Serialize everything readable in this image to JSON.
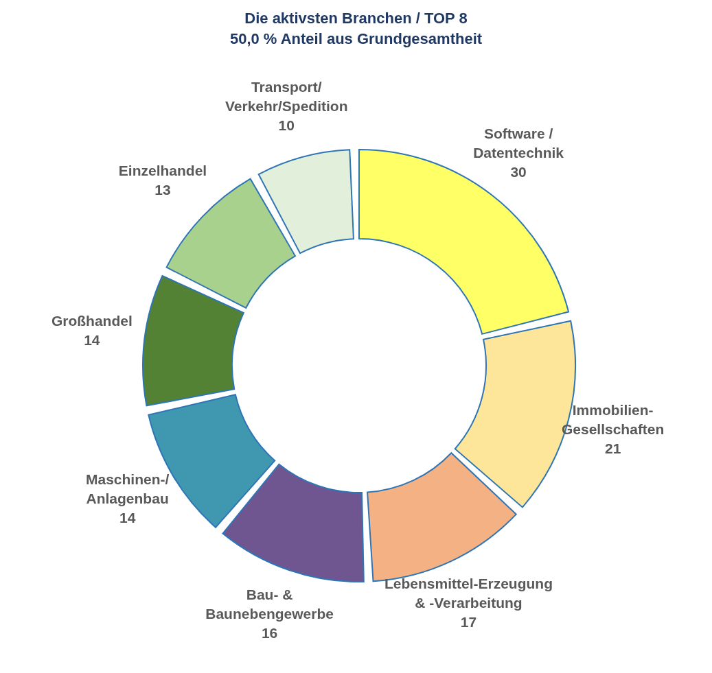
{
  "chart_data": {
    "type": "donut",
    "title": "Die aktivsten Branchen  / TOP 8\n50,0 %  Anteil aus Grundgesamtheit",
    "categories": [
      "Software /\nDatentechnik",
      "Immobilien-\nGesellschaften",
      "Lebensmittel-Erzeugung\n& -Verarbeitung",
      "Bau- &\nBaunebengewerbe",
      "Maschinen-/\nAnlagenbau",
      "Großhandel",
      "Einzelhandel",
      "Transport/\nVerkehr/Spedition"
    ],
    "values": [
      30,
      21,
      17,
      16,
      14,
      14,
      13,
      10
    ],
    "colors": [
      "#ffff66",
      "#fde699",
      "#f4b183",
      "#6f5690",
      "#3f97b0",
      "#548235",
      "#a9d18e",
      "#e2efda"
    ],
    "data_labels": true,
    "legend": false
  }
}
